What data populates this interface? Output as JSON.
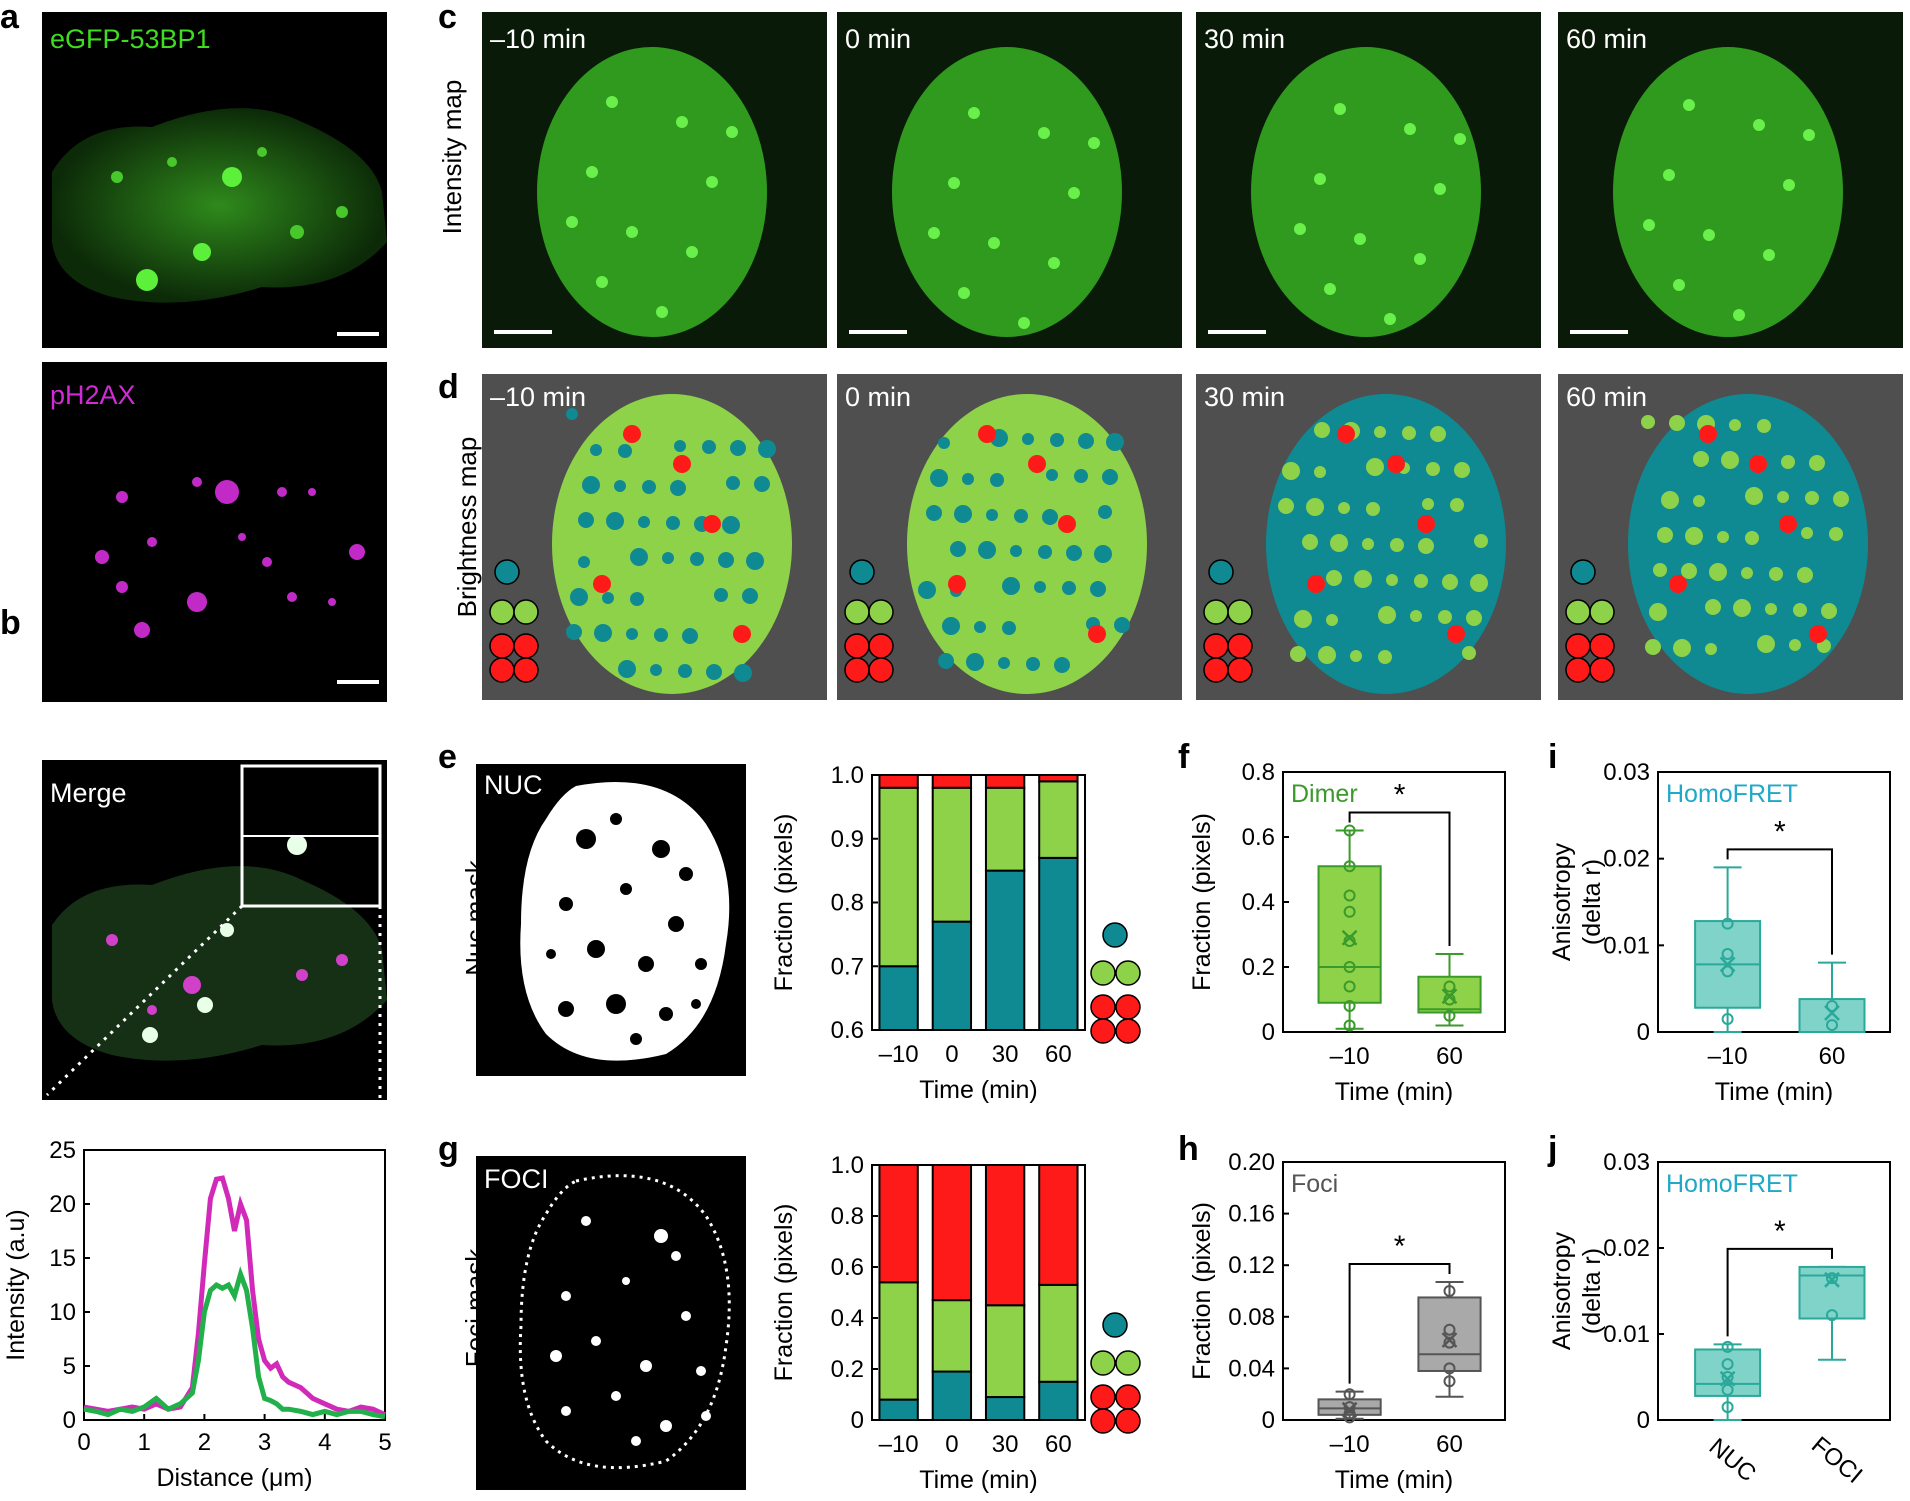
{
  "panels": {
    "a": "a",
    "b": "b",
    "c": "c",
    "d": "d",
    "e": "e",
    "f": "f",
    "g": "g",
    "h": "h",
    "i": "i",
    "j": "j"
  },
  "panel_a": {
    "top_label": "eGFP-53BP1",
    "bottom_label": "pH2AX",
    "colors": {
      "green": "#3fdc1f",
      "magenta": "#d12ad6"
    }
  },
  "panel_b": {
    "label": "Merge"
  },
  "panel_c": {
    "row_label": "Intensity map",
    "times": [
      "–10 min",
      "0 min",
      "30 min",
      "60 min"
    ]
  },
  "panel_d": {
    "row_label": "Brightness map",
    "times": [
      "–10 min",
      "0 min",
      "30 min",
      "60 min"
    ],
    "colors": {
      "monomer": "#0f8a92",
      "dimer": "#8ed24a",
      "oligomer": "#ff1a1a",
      "background": "#4f4f4f"
    }
  },
  "panel_e": {
    "image_label": "NUC",
    "row_label": "Nuc mask"
  },
  "panel_g": {
    "image_label": "FOCI",
    "row_label": "Foci mask"
  },
  "chart_data": [
    {
      "id": "b-profile",
      "type": "line",
      "xlabel": "Distance (μm)",
      "ylabel": "Intensity (a.u)",
      "xlim": [
        0,
        5
      ],
      "ylim": [
        0,
        25
      ],
      "xticks": [
        0,
        1,
        2,
        3,
        4,
        5
      ],
      "yticks": [
        0,
        5,
        10,
        15,
        20,
        25
      ],
      "series": [
        {
          "color": "#d12ab8",
          "x": [
            0,
            0.2,
            0.4,
            0.6,
            0.8,
            1.0,
            1.2,
            1.4,
            1.6,
            1.8,
            1.9,
            2.0,
            2.1,
            2.2,
            2.3,
            2.4,
            2.5,
            2.6,
            2.7,
            2.8,
            2.9,
            3.0,
            3.1,
            3.2,
            3.3,
            3.4,
            3.6,
            3.8,
            4.0,
            4.2,
            4.4,
            4.6,
            4.8,
            5.0
          ],
          "y": [
            1.2,
            1.0,
            0.8,
            1.0,
            1.2,
            1.0,
            1.5,
            1.0,
            1.2,
            3.0,
            8.0,
            14.5,
            20.5,
            22.3,
            22.4,
            20.5,
            17.5,
            20.0,
            18.5,
            12.0,
            7.5,
            5.5,
            4.8,
            5.2,
            4.0,
            3.5,
            3.0,
            2.0,
            1.5,
            1.0,
            0.8,
            1.2,
            1.0,
            0.5
          ]
        },
        {
          "color": "#22b04a",
          "x": [
            0,
            0.2,
            0.4,
            0.6,
            0.8,
            1.0,
            1.2,
            1.4,
            1.6,
            1.8,
            1.9,
            2.0,
            2.1,
            2.2,
            2.3,
            2.4,
            2.5,
            2.6,
            2.7,
            2.8,
            2.9,
            3.0,
            3.1,
            3.2,
            3.3,
            3.4,
            3.6,
            3.8,
            4.0,
            4.2,
            4.4,
            4.6,
            4.8,
            5.0
          ],
          "y": [
            1.0,
            0.8,
            0.5,
            1.0,
            0.8,
            1.2,
            2.0,
            1.0,
            1.5,
            2.5,
            5.5,
            10.0,
            12.0,
            12.5,
            12.2,
            12.5,
            11.5,
            13.5,
            12.0,
            8.5,
            4.0,
            2.0,
            1.8,
            1.5,
            1.0,
            1.0,
            0.8,
            0.5,
            0.8,
            0.5,
            0.8,
            0.8,
            0.5,
            0.3
          ]
        }
      ]
    },
    {
      "id": "e-fraction",
      "type": "bar",
      "xlabel": "Time (min)",
      "ylabel": "Fraction (pixels)",
      "categories": [
        "–10",
        "0",
        "30",
        "60"
      ],
      "ylim": [
        0.6,
        1.0
      ],
      "yticks": [
        "0.6",
        "0.7",
        "0.8",
        "0.9",
        "1.0"
      ],
      "series": [
        {
          "color": "#0f8a92",
          "values": [
            0.7,
            0.77,
            0.85,
            0.87
          ]
        },
        {
          "color": "#8ed24a",
          "values": [
            0.28,
            0.21,
            0.13,
            0.12
          ]
        },
        {
          "color": "#ff1a1a",
          "values": [
            0.02,
            0.02,
            0.02,
            0.01
          ]
        }
      ]
    },
    {
      "id": "g-fraction",
      "type": "bar",
      "xlabel": "Time (min)",
      "ylabel": "Fraction (pixels)",
      "categories": [
        "–10",
        "0",
        "30",
        "60"
      ],
      "ylim": [
        0,
        1.0
      ],
      "yticks": [
        "0",
        "0.2",
        "0.4",
        "0.6",
        "0.8",
        "1.0"
      ],
      "series": [
        {
          "color": "#0f8a92",
          "values": [
            0.08,
            0.19,
            0.09,
            0.15
          ]
        },
        {
          "color": "#8ed24a",
          "values": [
            0.46,
            0.28,
            0.36,
            0.38
          ]
        },
        {
          "color": "#ff1a1a",
          "values": [
            0.46,
            0.53,
            0.55,
            0.47
          ]
        }
      ]
    },
    {
      "id": "f-box",
      "type": "box",
      "label": "Dimer",
      "xlabel": "Time (min)",
      "ylabel": "Fraction (pixels)",
      "categories": [
        "–10",
        "60"
      ],
      "ylim": [
        0,
        0.8
      ],
      "yticks": [
        "0",
        "0.2",
        "0.4",
        "0.6",
        "0.8"
      ],
      "significance": "*",
      "color": "#8ed24a",
      "edge": "#3a9a2a",
      "boxes": [
        {
          "q1": 0.09,
          "median": 0.2,
          "q3": 0.51,
          "min": 0.01,
          "max": 0.62,
          "mean": 0.29,
          "points": [
            0.62,
            0.51,
            0.42,
            0.37,
            0.28,
            0.2,
            0.14,
            0.08,
            0.02
          ]
        },
        {
          "q1": 0.06,
          "median": 0.07,
          "q3": 0.17,
          "min": 0.02,
          "max": 0.24,
          "mean": 0.11,
          "points": [
            0.14,
            0.1,
            0.05
          ]
        }
      ]
    },
    {
      "id": "h-box",
      "type": "box",
      "label": "Foci",
      "xlabel": "Time (min)",
      "ylabel": "Fraction (pixels)",
      "categories": [
        "–10",
        "60"
      ],
      "ylim": [
        0,
        0.2
      ],
      "yticks": [
        "0",
        "0.04",
        "0.08",
        "0.12",
        "0.16",
        "0.20"
      ],
      "significance": "*",
      "color": "#a9a9a9",
      "edge": "#555555",
      "boxes": [
        {
          "q1": 0.004,
          "median": 0.009,
          "q3": 0.016,
          "min": 0.001,
          "max": 0.022,
          "mean": 0.008,
          "points": [
            0.02,
            0.01,
            0.005,
            0.002
          ]
        },
        {
          "q1": 0.038,
          "median": 0.051,
          "q3": 0.095,
          "min": 0.018,
          "max": 0.107,
          "mean": 0.062,
          "points": [
            0.1,
            0.07,
            0.06,
            0.04,
            0.03
          ]
        }
      ]
    },
    {
      "id": "i-box",
      "type": "box",
      "label": "HomoFRET",
      "xlabel": "Time (min)",
      "ylabel": "Anisotropy",
      "ylabel2": "(delta r)",
      "categories": [
        "–10",
        "60"
      ],
      "ylim": [
        0,
        0.03
      ],
      "yticks": [
        "0",
        "0.01",
        "0.02",
        "0.03"
      ],
      "significance": "*",
      "color": "#7fd3c8",
      "edge": "#2aa89a",
      "title_color": "#1fa8c8",
      "boxes": [
        {
          "q1": 0.0028,
          "median": 0.0078,
          "q3": 0.0128,
          "min": 0.0,
          "max": 0.019,
          "mean": 0.0078,
          "points": [
            0.0125,
            0.009,
            0.007,
            0.0015
          ]
        },
        {
          "q1": 0.0,
          "median": 0.0,
          "q3": 0.0038,
          "min": 0.0,
          "max": 0.008,
          "mean": 0.0022,
          "points": [
            0.003,
            0.0008
          ]
        }
      ]
    },
    {
      "id": "j-box",
      "type": "box",
      "label": "HomoFRET",
      "xlabel": "",
      "ylabel": "Anisotropy",
      "ylabel2": "(delta r)",
      "categories": [
        "NUC",
        "FOCI"
      ],
      "ylim": [
        0,
        0.03
      ],
      "yticks": [
        "0",
        "0.01",
        "0.02",
        "0.03"
      ],
      "significance": "*",
      "color": "#7fd3c8",
      "edge": "#2aa89a",
      "title_color": "#1fa8c8",
      "boxes": [
        {
          "q1": 0.0028,
          "median": 0.0042,
          "q3": 0.0082,
          "min": 0.0,
          "max": 0.0088,
          "mean": 0.0048,
          "points": [
            0.0085,
            0.0065,
            0.005,
            0.0035,
            0.0015
          ]
        },
        {
          "q1": 0.0118,
          "median": 0.0168,
          "q3": 0.0178,
          "min": 0.007,
          "max": 0.0178,
          "mean": 0.0163,
          "points": [
            0.0165,
            0.0122
          ]
        }
      ]
    }
  ]
}
